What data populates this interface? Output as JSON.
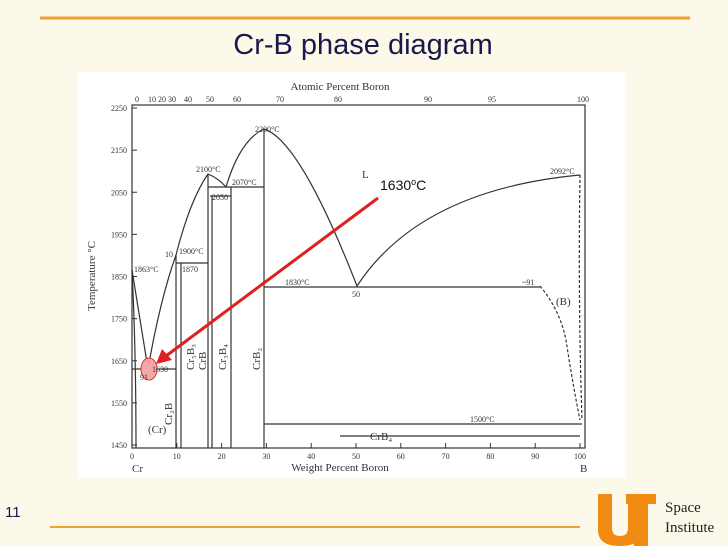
{
  "header": {
    "title": "Cr-B phase diagram"
  },
  "annotation": {
    "number": "1630",
    "sup": "o",
    "unit": "C"
  },
  "diagram": {
    "top_axis_label": "Atomic Percent Boron",
    "bottom_axis_label": "Weight Percent Boron",
    "y_axis_label": "Temperature °C",
    "yticks": [
      1450,
      1550,
      1650,
      1750,
      1850,
      1950,
      2050,
      2150,
      2250
    ],
    "xticks": [
      0,
      10,
      20,
      30,
      40,
      50,
      60,
      70,
      80,
      90,
      100
    ],
    "top_ticks": [
      0,
      10,
      20,
      30,
      40,
      50,
      60,
      70,
      80,
      90,
      95,
      100
    ],
    "left_element": "Cr",
    "right_element": "B",
    "liquid": "L",
    "temperatures": [
      "2200°C",
      "2100°C",
      "2070°C",
      "2050",
      "1900°C",
      "1870",
      "1863°C",
      "1630",
      "1830°C",
      "50",
      "~91",
      "2092°C",
      "1500°C",
      "10",
      "91"
    ],
    "phases": [
      "(Cr)",
      "Cr₂B",
      "Cr₅B₃",
      "CrB",
      "Cr₃B₄",
      "CrB₂",
      "CrB₄",
      "(B)"
    ]
  },
  "footer": {
    "slide_number": "11",
    "logo_line1": "Space",
    "logo_line2": "Institute"
  }
}
